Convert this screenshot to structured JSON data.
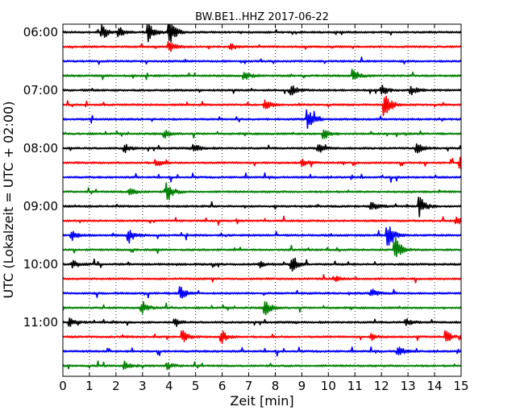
{
  "chart_data": {
    "type": "line",
    "title": "BW.BE1..HHZ 2017-06-22",
    "xlabel": "Zeit  [min]",
    "ylabel": "UTC (Lokalzeit = UTC + 02:00)",
    "xlim": [
      0,
      15
    ],
    "x_ticks": [
      "0",
      "1",
      "2",
      "3",
      "4",
      "5",
      "6",
      "7",
      "8",
      "9",
      "10",
      "11",
      "12",
      "13",
      "14",
      "15"
    ],
    "y_tick_labels": [
      "06:00",
      "07:00",
      "08:00",
      "09:00",
      "10:00",
      "11:00"
    ],
    "trace_interval_minutes": 15,
    "first_trace": "06:00",
    "grid": "vertical dotted",
    "color_cycle": [
      "#000000",
      "#ff0000",
      "#0000ff",
      "#008000"
    ],
    "traces": [
      {
        "start": "06:00",
        "color": "#000000",
        "events": [
          {
            "t": 1.45,
            "amp": 0.55
          },
          {
            "t": 3.2,
            "amp": 0.75
          },
          {
            "t": 4.0,
            "amp": 0.9
          },
          {
            "t": 2.1,
            "amp": 0.3
          }
        ]
      },
      {
        "start": "06:15",
        "color": "#ff0000",
        "events": [
          {
            "t": 4.0,
            "amp": 0.35
          },
          {
            "t": 6.3,
            "amp": 0.2
          }
        ]
      },
      {
        "start": "06:30",
        "color": "#0000ff",
        "events": []
      },
      {
        "start": "06:45",
        "color": "#008000",
        "events": [
          {
            "t": 6.8,
            "amp": 0.35
          },
          {
            "t": 10.9,
            "amp": 0.5
          }
        ]
      },
      {
        "start": "07:00",
        "color": "#000000",
        "events": [
          {
            "t": 8.6,
            "amp": 0.3
          },
          {
            "t": 12.0,
            "amp": 0.35
          },
          {
            "t": 13.1,
            "amp": 0.3
          }
        ]
      },
      {
        "start": "07:15",
        "color": "#ff0000",
        "events": [
          {
            "t": 7.6,
            "amp": 0.4
          },
          {
            "t": 12.1,
            "amp": 0.85
          }
        ]
      },
      {
        "start": "07:30",
        "color": "#0000ff",
        "events": [
          {
            "t": 9.2,
            "amp": 0.9
          }
        ]
      },
      {
        "start": "07:45",
        "color": "#008000",
        "events": [
          {
            "t": 3.8,
            "amp": 0.3
          },
          {
            "t": 9.8,
            "amp": 0.4
          }
        ]
      },
      {
        "start": "08:00",
        "color": "#000000",
        "events": [
          {
            "t": 2.3,
            "amp": 0.3
          },
          {
            "t": 4.9,
            "amp": 0.35
          },
          {
            "t": 9.6,
            "amp": 0.35
          },
          {
            "t": 13.3,
            "amp": 0.35
          }
        ]
      },
      {
        "start": "08:15",
        "color": "#ff0000",
        "events": [
          {
            "t": 3.5,
            "amp": 0.25
          },
          {
            "t": 9.0,
            "amp": 0.25
          },
          {
            "t": 14.95,
            "amp": 0.6
          }
        ]
      },
      {
        "start": "08:30",
        "color": "#0000ff",
        "events": []
      },
      {
        "start": "08:45",
        "color": "#008000",
        "events": [
          {
            "t": 2.5,
            "amp": 0.3
          },
          {
            "t": 3.9,
            "amp": 0.75
          }
        ]
      },
      {
        "start": "09:00",
        "color": "#000000",
        "events": [
          {
            "t": 11.6,
            "amp": 0.4
          },
          {
            "t": 13.4,
            "amp": 0.75
          }
        ]
      },
      {
        "start": "09:15",
        "color": "#ff0000",
        "events": [
          {
            "t": 14.8,
            "amp": 0.3
          }
        ]
      },
      {
        "start": "09:30",
        "color": "#0000ff",
        "events": [
          {
            "t": 0.3,
            "amp": 0.35
          },
          {
            "t": 2.45,
            "amp": 0.55
          },
          {
            "t": 12.2,
            "amp": 0.95
          }
        ]
      },
      {
        "start": "09:45",
        "color": "#008000",
        "events": [
          {
            "t": 12.5,
            "amp": 0.95
          }
        ]
      },
      {
        "start": "10:00",
        "color": "#000000",
        "events": [
          {
            "t": 0.35,
            "amp": 0.3
          },
          {
            "t": 8.6,
            "amp": 0.5
          },
          {
            "t": 7.4,
            "amp": 0.2
          }
        ]
      },
      {
        "start": "10:15",
        "color": "#ff0000",
        "events": [
          {
            "t": 10.2,
            "amp": 0.2
          }
        ]
      },
      {
        "start": "10:30",
        "color": "#0000ff",
        "events": [
          {
            "t": 4.4,
            "amp": 0.45
          },
          {
            "t": 11.6,
            "amp": 0.3
          }
        ]
      },
      {
        "start": "10:45",
        "color": "#008000",
        "events": [
          {
            "t": 2.95,
            "amp": 0.5
          },
          {
            "t": 7.6,
            "amp": 0.6
          }
        ]
      },
      {
        "start": "11:00",
        "color": "#000000",
        "events": [
          {
            "t": 0.25,
            "amp": 0.3
          },
          {
            "t": 4.2,
            "amp": 0.2
          },
          {
            "t": 12.9,
            "amp": 0.25
          }
        ]
      },
      {
        "start": "11:15",
        "color": "#ff0000",
        "events": [
          {
            "t": 4.5,
            "amp": 0.4
          },
          {
            "t": 5.95,
            "amp": 0.45
          },
          {
            "t": 14.4,
            "amp": 0.4
          },
          {
            "t": 11.6,
            "amp": 0.2
          }
        ]
      },
      {
        "start": "11:30",
        "color": "#0000ff",
        "events": [
          {
            "t": 12.6,
            "amp": 0.35
          }
        ]
      },
      {
        "start": "11:45",
        "color": "#008000",
        "events": [
          {
            "t": 2.3,
            "amp": 0.3
          },
          {
            "t": 3.9,
            "amp": 0.25
          }
        ]
      }
    ]
  }
}
